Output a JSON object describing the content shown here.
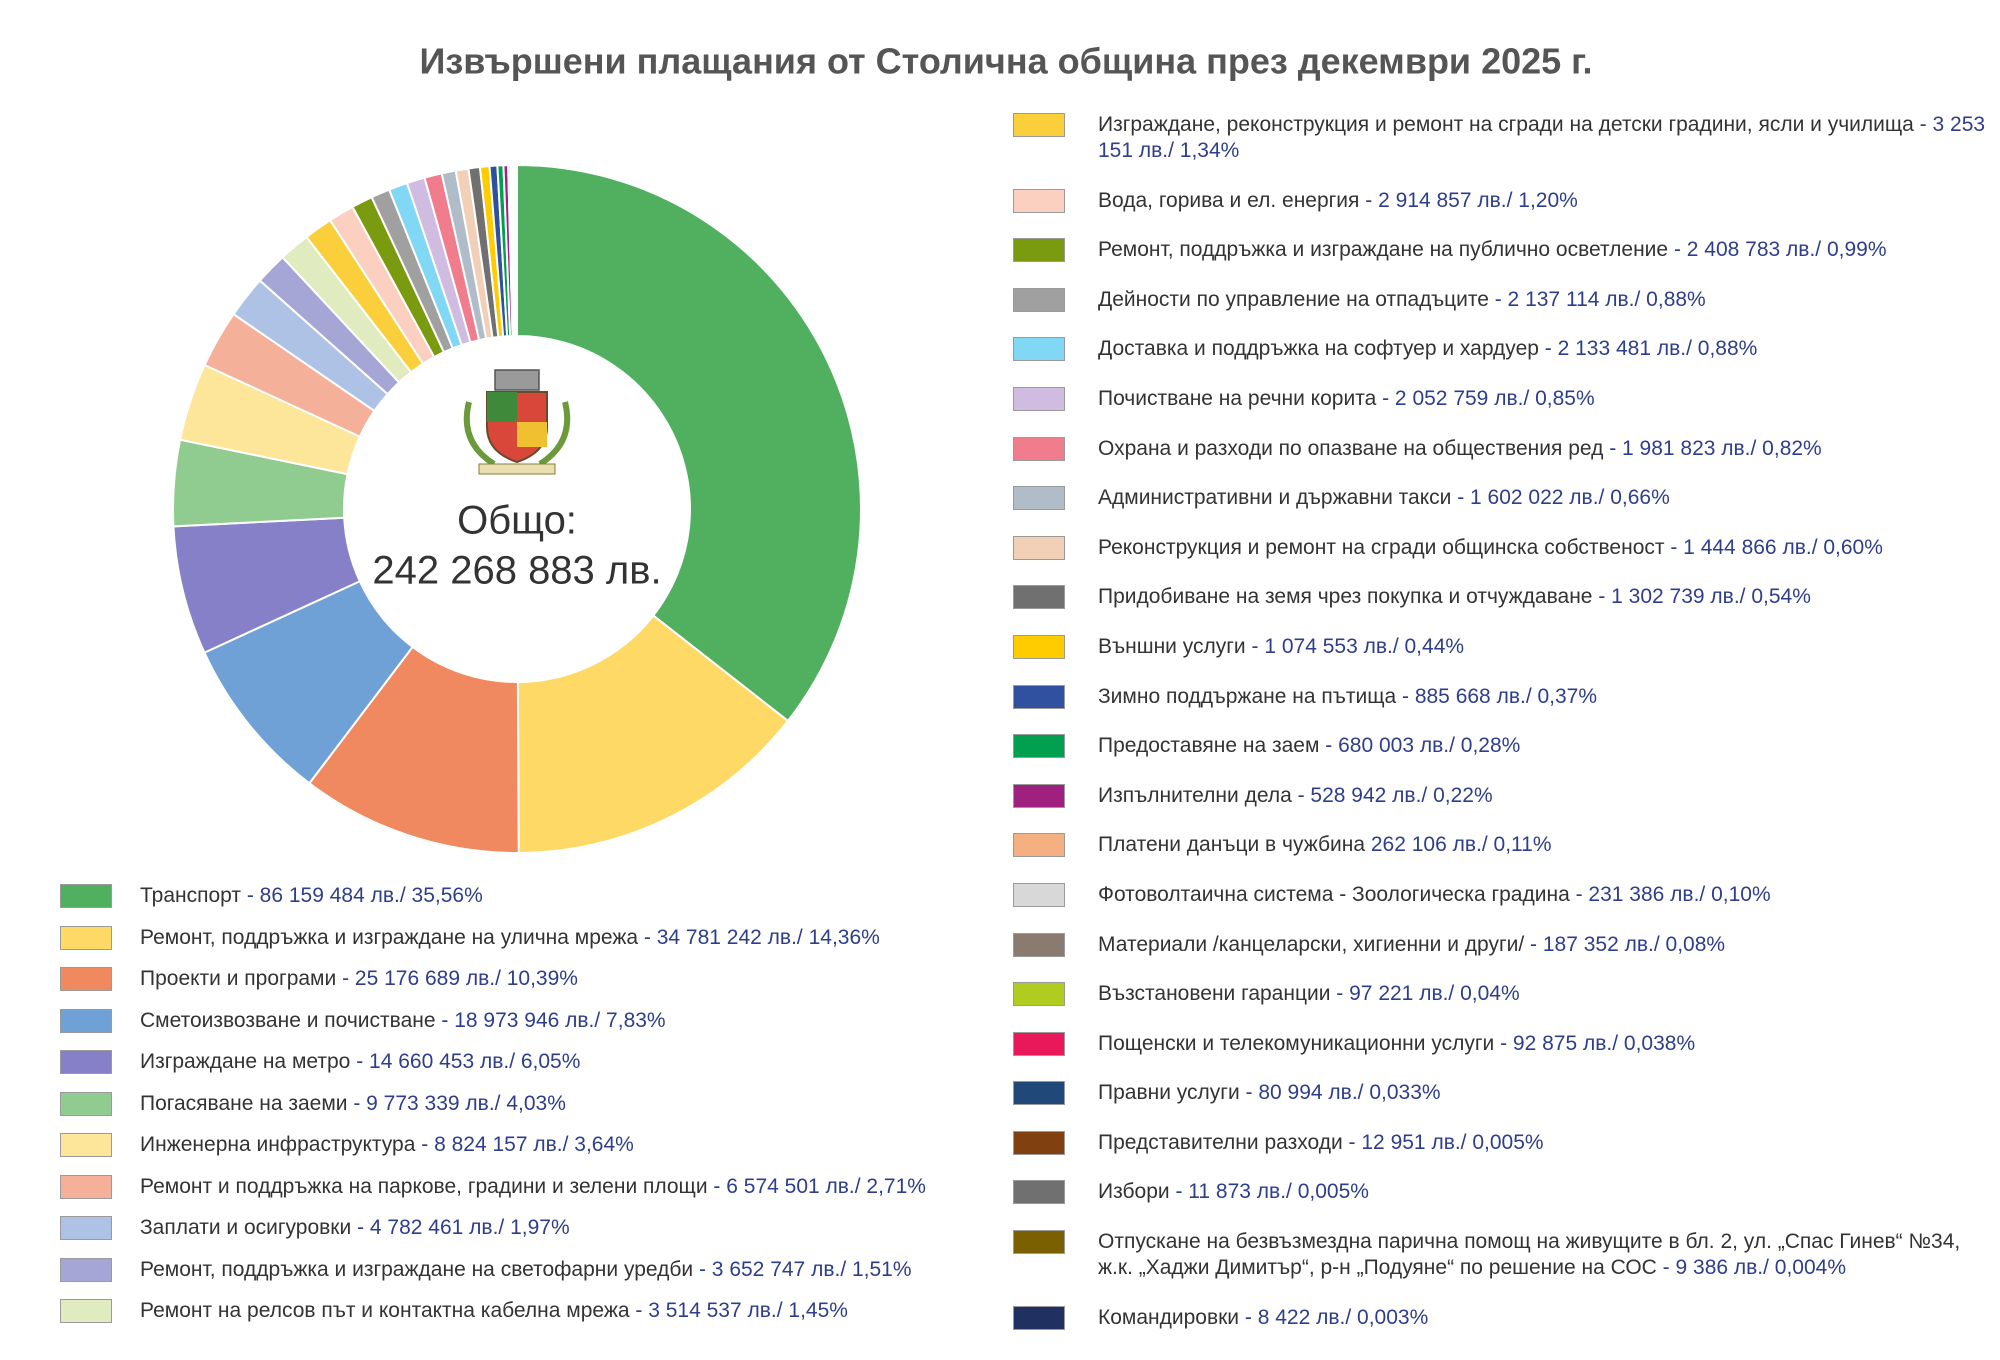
{
  "chart_data": {
    "type": "pie",
    "title": "Извършени плащания от Столична община през декември 2025 г.",
    "center_text": [
      "Общо:",
      "242 268 883 лв."
    ],
    "categories": [
      "Транспорт",
      "Ремонт, поддръжка и изграждане на улична мрежа",
      "Проекти и програми",
      "Сметоизвозване и почистване",
      "Изграждане на метро",
      "Погасяване на заеми",
      "Инженерна инфраструктура",
      "Ремонт и поддръжка на паркове, градини и зелени площи",
      "Заплати и осигуровки",
      "Ремонт, поддръжка и изграждане на светофарни уредби",
      "Ремонт на релсов път и контактна кабелна мрежа",
      "Изграждане, реконструкция и ремонт на сгради на детски градини, ясли и училища",
      "Вода, горива и ел. енергия",
      "Ремонт, поддръжка и изграждане на публично осветление",
      "Дейности по управление на отпадъците",
      "Доставка и поддръжка на софтуер и хардуер",
      "Почистване на речни корита",
      "Охрана и разходи по опазване на обществения ред",
      "Административни и държавни такси",
      "Реконструкция и ремонт на сгради общинска собственост",
      "Придобиване на земя чрез покупка и отчуждаване",
      "Външни услуги",
      "Зимно поддържане на пътища",
      "Предоставяне на заем",
      "Изпълнителни дела",
      "Платени данъци в чужбина",
      "Фотоволтаична система - Зоологическа градина",
      "Материали /канцеларски, хигиенни и други/",
      "Възстановени гаранции",
      "Пощенски и телекомуникационни услуги",
      "Правни услуги",
      "Представителни разходи",
      "Избори",
      "Отпускане на безвъзмездна парична помощ на живущите в бл. 2, ул. „Спас Гинев“ №34, ж.к. „Хаджи Димитър“, р-н „Подуяне“ по решение на СОС",
      "Командировки"
    ],
    "values": [
      86159484,
      34781242,
      25176689,
      18973946,
      14660453,
      9773339,
      8824157,
      6574501,
      4782461,
      3652747,
      3514537,
      3253151,
      2914857,
      2408783,
      2137114,
      2133481,
      2052759,
      1981823,
      1602022,
      1444866,
      1302739,
      1074553,
      885668,
      680003,
      528942,
      262106,
      231386,
      187352,
      97221,
      92875,
      80994,
      12951,
      11873,
      9386,
      8422
    ],
    "value_labels": [
      "- 86 159 484 лв./ 35,56%",
      "- 34 781 242 лв./ 14,36%",
      "- 25 176 689 лв./ 10,39%",
      "- 18 973 946 лв./ 7,83%",
      "- 14 660 453 лв./ 6,05%",
      "- 9 773 339 лв./ 4,03%",
      "- 8 824 157 лв./ 3,64%",
      "- 6 574 501 лв./ 2,71%",
      "- 4 782 461 лв./ 1,97%",
      "- 3 652 747 лв./ 1,51%",
      "- 3 514 537 лв./ 1,45%",
      "- 3 253 151 лв./ 1,34%",
      "- 2 914 857 лв./ 1,20%",
      "- 2 408 783 лв./ 0,99%",
      "- 2 137 114 лв./ 0,88%",
      "- 2 133 481 лв./ 0,88%",
      "- 2 052 759 лв./ 0,85%",
      "- 1 981 823 лв./ 0,82%",
      "- 1 602 022 лв./ 0,66%",
      "- 1 444 866 лв./ 0,60%",
      "- 1 302 739 лв./ 0,54%",
      "- 1 074 553 лв./ 0,44%",
      "- 885 668 лв./ 0,37%",
      "- 680 003 лв./ 0,28%",
      "- 528 942 лв./ 0,22%",
      "262 106 лв./ 0,11%",
      "- 231 386 лв./ 0,10%",
      "- 187 352 лв./ 0,08%",
      "- 97 221 лв./ 0,04%",
      "- 92 875 лв./ 0,038%",
      "- 80 994 лв./ 0,033%",
      "- 12 951 лв./ 0,005%",
      "- 11 873 лв./ 0,005%",
      "- 9 386 лв./ 0,004%",
      "- 8 422 лв./ 0,003%"
    ],
    "colors": [
      "#50b060",
      "#ffd966",
      "#f08860",
      "#6fa0d6",
      "#8580c8",
      "#90cc90",
      "#fde59a",
      "#f5b09a",
      "#aec2e6",
      "#a6a6d6",
      "#e0ecc0",
      "#fbcf3c",
      "#fcd0c0",
      "#7a9a10",
      "#a0a0a0",
      "#80d8f4",
      "#d0bce0",
      "#f07c8c",
      "#b0bcc8",
      "#f2d0b8",
      "#707070",
      "#ffcc00",
      "#3050a0",
      "#00a050",
      "#a02080",
      "#f4b080",
      "#d8d8d8",
      "#8a7a70",
      "#b0cc20",
      "#e8185a",
      "#204878",
      "#804010",
      "#707070",
      "#7a6000",
      "#203060"
    ]
  }
}
